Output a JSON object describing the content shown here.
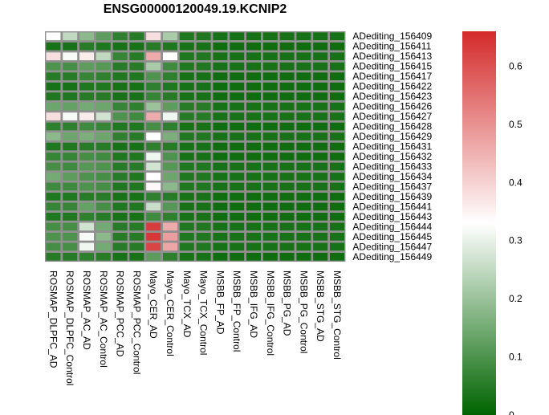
{
  "chart_data": {
    "type": "heatmap",
    "title": "ENSG00000120049.19.KCNIP2",
    "rows": [
      "ADediting_156409",
      "ADediting_156411",
      "ADediting_156413",
      "ADediting_156415",
      "ADediting_156417",
      "ADediting_156422",
      "ADediting_156423",
      "ADediting_156426",
      "ADediting_156427",
      "ADediting_156428",
      "ADediting_156429",
      "ADediting_156431",
      "ADediting_156432",
      "ADediting_156433",
      "ADediting_156434",
      "ADediting_156437",
      "ADediting_156439",
      "ADediting_156441",
      "ADediting_156443",
      "ADediting_156444",
      "ADediting_156445",
      "ADediting_156447",
      "ADediting_156449"
    ],
    "columns": [
      "ROSMAP_DLPFC_AD",
      "ROSMAP_DLPFC_Control",
      "ROSMAP_AC_AD",
      "ROSMAP_AC_Control",
      "ROSMAP_PCC_AD",
      "ROSMAP_PCC_Control",
      "Mayo_CER_AD",
      "Mayo_CER_Control",
      "Mayo_TCX_AD",
      "Mayo_TCX_Control",
      "MSBB_FP_AD",
      "MSBB_FP_Control",
      "MSBB_IFG_AD",
      "MSBB_IFG_Control",
      "MSBB_PG_AD",
      "MSBB_PG_Control",
      "MSBB_STG_AD",
      "MSBB_STG_Control"
    ],
    "values": [
      [
        0.33,
        0.25,
        0.18,
        0.12,
        0.06,
        0.05,
        0.38,
        0.22,
        0.04,
        0.04,
        0.03,
        0.03,
        0.03,
        0.03,
        0.03,
        0.03,
        0.03,
        0.03
      ],
      [
        0.03,
        0.03,
        0.05,
        0.04,
        0.03,
        0.03,
        0.05,
        0.04,
        0.03,
        0.03,
        0.02,
        0.02,
        0.02,
        0.02,
        0.02,
        0.02,
        0.02,
        0.02
      ],
      [
        0.38,
        0.32,
        0.36,
        0.25,
        0.07,
        0.05,
        0.46,
        0.33,
        0.04,
        0.04,
        0.03,
        0.03,
        0.03,
        0.03,
        0.03,
        0.03,
        0.03,
        0.03
      ],
      [
        0.1,
        0.09,
        0.12,
        0.11,
        0.05,
        0.05,
        0.22,
        0.08,
        0.04,
        0.04,
        0.03,
        0.03,
        0.03,
        0.03,
        0.03,
        0.03,
        0.03,
        0.03
      ],
      [
        0.05,
        0.05,
        0.07,
        0.06,
        0.04,
        0.04,
        0.1,
        0.06,
        0.03,
        0.03,
        0.02,
        0.02,
        0.02,
        0.02,
        0.02,
        0.02,
        0.02,
        0.02
      ],
      [
        0.03,
        0.03,
        0.04,
        0.04,
        0.03,
        0.03,
        0.06,
        0.04,
        0.03,
        0.03,
        0.02,
        0.02,
        0.02,
        0.02,
        0.02,
        0.02,
        0.02,
        0.02
      ],
      [
        0.04,
        0.04,
        0.05,
        0.05,
        0.03,
        0.03,
        0.07,
        0.05,
        0.03,
        0.03,
        0.02,
        0.02,
        0.02,
        0.02,
        0.02,
        0.02,
        0.02,
        0.02
      ],
      [
        0.14,
        0.13,
        0.15,
        0.14,
        0.07,
        0.06,
        0.2,
        0.12,
        0.05,
        0.05,
        0.03,
        0.03,
        0.03,
        0.03,
        0.03,
        0.03,
        0.03,
        0.03
      ],
      [
        0.38,
        0.32,
        0.36,
        0.27,
        0.1,
        0.08,
        0.46,
        0.31,
        0.05,
        0.05,
        0.03,
        0.03,
        0.03,
        0.03,
        0.03,
        0.03,
        0.03,
        0.03
      ],
      [
        0.06,
        0.06,
        0.08,
        0.07,
        0.04,
        0.04,
        0.09,
        0.06,
        0.03,
        0.03,
        0.02,
        0.02,
        0.02,
        0.02,
        0.02,
        0.02,
        0.02,
        0.02
      ],
      [
        0.18,
        0.14,
        0.16,
        0.14,
        0.06,
        0.05,
        0.33,
        0.16,
        0.04,
        0.04,
        0.03,
        0.03,
        0.03,
        0.03,
        0.03,
        0.03,
        0.03,
        0.03
      ],
      [
        0.04,
        0.04,
        0.05,
        0.05,
        0.03,
        0.03,
        0.06,
        0.05,
        0.03,
        0.03,
        0.02,
        0.02,
        0.02,
        0.02,
        0.02,
        0.02,
        0.02,
        0.02
      ],
      [
        0.07,
        0.07,
        0.09,
        0.08,
        0.04,
        0.04,
        0.31,
        0.1,
        0.03,
        0.03,
        0.02,
        0.02,
        0.02,
        0.02,
        0.02,
        0.02,
        0.02,
        0.02
      ],
      [
        0.09,
        0.08,
        0.11,
        0.1,
        0.05,
        0.05,
        0.27,
        0.11,
        0.04,
        0.04,
        0.03,
        0.03,
        0.03,
        0.03,
        0.03,
        0.03,
        0.03,
        0.03
      ],
      [
        0.15,
        0.12,
        0.1,
        0.09,
        0.05,
        0.04,
        0.33,
        0.14,
        0.04,
        0.04,
        0.03,
        0.03,
        0.03,
        0.03,
        0.03,
        0.03,
        0.03,
        0.03
      ],
      [
        0.08,
        0.08,
        0.1,
        0.09,
        0.04,
        0.04,
        0.34,
        0.18,
        0.04,
        0.04,
        0.03,
        0.03,
        0.03,
        0.03,
        0.03,
        0.03,
        0.03,
        0.03
      ],
      [
        0.04,
        0.04,
        0.05,
        0.05,
        0.03,
        0.03,
        0.06,
        0.05,
        0.03,
        0.03,
        0.02,
        0.02,
        0.02,
        0.02,
        0.02,
        0.02,
        0.02,
        0.02
      ],
      [
        0.07,
        0.07,
        0.13,
        0.09,
        0.04,
        0.04,
        0.26,
        0.11,
        0.03,
        0.03,
        0.02,
        0.02,
        0.02,
        0.02,
        0.02,
        0.02,
        0.02,
        0.02
      ],
      [
        0.04,
        0.04,
        0.06,
        0.05,
        0.03,
        0.03,
        0.08,
        0.06,
        0.03,
        0.03,
        0.02,
        0.02,
        0.02,
        0.02,
        0.02,
        0.02,
        0.02,
        0.02
      ],
      [
        0.09,
        0.09,
        0.27,
        0.15,
        0.05,
        0.05,
        0.63,
        0.46,
        0.04,
        0.04,
        0.03,
        0.03,
        0.03,
        0.03,
        0.03,
        0.03,
        0.03,
        0.03
      ],
      [
        0.1,
        0.1,
        0.32,
        0.18,
        0.05,
        0.05,
        0.64,
        0.48,
        0.04,
        0.04,
        0.03,
        0.03,
        0.03,
        0.03,
        0.03,
        0.03,
        0.03,
        0.03
      ],
      [
        0.09,
        0.09,
        0.31,
        0.15,
        0.05,
        0.05,
        0.62,
        0.47,
        0.04,
        0.04,
        0.03,
        0.03,
        0.03,
        0.03,
        0.03,
        0.03,
        0.03,
        0.03
      ],
      [
        0.05,
        0.05,
        0.06,
        0.05,
        0.03,
        0.03,
        0.12,
        0.06,
        0.03,
        0.03,
        0.02,
        0.02,
        0.02,
        0.02,
        0.02,
        0.02,
        0.02,
        0.02
      ]
    ],
    "colorbar": {
      "min": 0,
      "max": 0.66,
      "ticks": [
        0,
        0.1,
        0.2,
        0.3,
        0.4,
        0.5,
        0.6
      ],
      "tick_labels": [
        "0",
        "0.1",
        "0.2",
        "0.3",
        "0.4",
        "0.5",
        "0.6"
      ],
      "colors": {
        "low": "#006400",
        "mid": "#ffffff",
        "high": "#d42a2a"
      },
      "mid_value": 0.33
    },
    "cell_border_color": "#909090",
    "legend_position": "right"
  }
}
